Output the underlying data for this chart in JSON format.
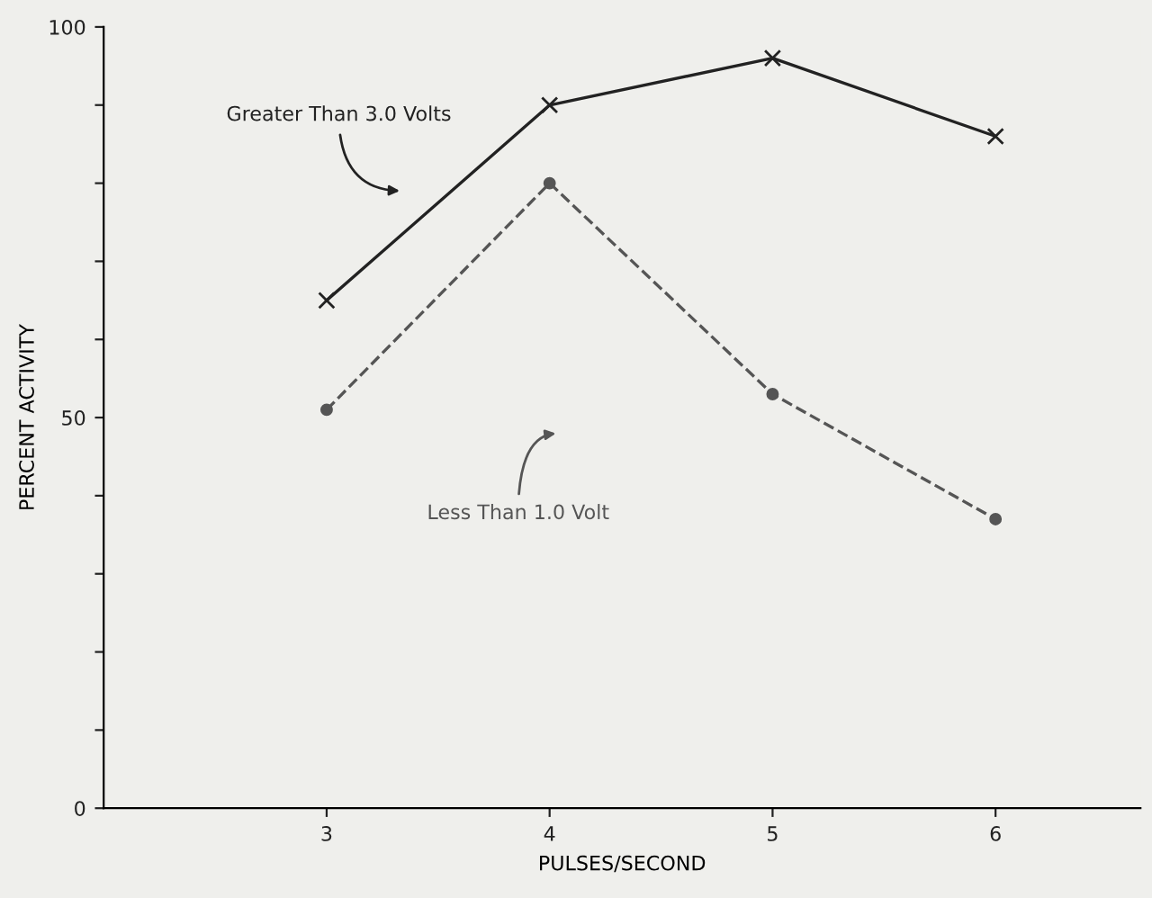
{
  "chart_data": {
    "type": "line",
    "xlabel": "PULSES/SECOND",
    "ylabel": "PERCENT ACTIVITY",
    "x": [
      3,
      4,
      5,
      6
    ],
    "series": [
      {
        "name": "Greater Than 3.0 Volts",
        "color": "#222222",
        "values": [
          65,
          90,
          96,
          86
        ],
        "marker": "cross",
        "line_style": "solid"
      },
      {
        "name": "Less Than 1.0 Volt",
        "color": "#555555",
        "values": [
          51,
          80,
          53,
          37
        ],
        "marker": "circle",
        "line_style": "dashed"
      }
    ],
    "xlim": [
      2,
      6.65
    ],
    "xticks": [
      3,
      4,
      5,
      6
    ],
    "ylim": [
      0,
      100
    ],
    "yticks": [
      0,
      {
        "value": 10,
        "label": null
      },
      {
        "value": 20,
        "label": null
      },
      {
        "value": 30,
        "label": null
      },
      {
        "value": 40,
        "label": null
      },
      50,
      {
        "value": 60,
        "label": null
      },
      {
        "value": 70,
        "label": null
      },
      {
        "value": 80,
        "label": null
      },
      {
        "value": 90,
        "label": null
      },
      100
    ],
    "grid": false,
    "legend": false
  }
}
